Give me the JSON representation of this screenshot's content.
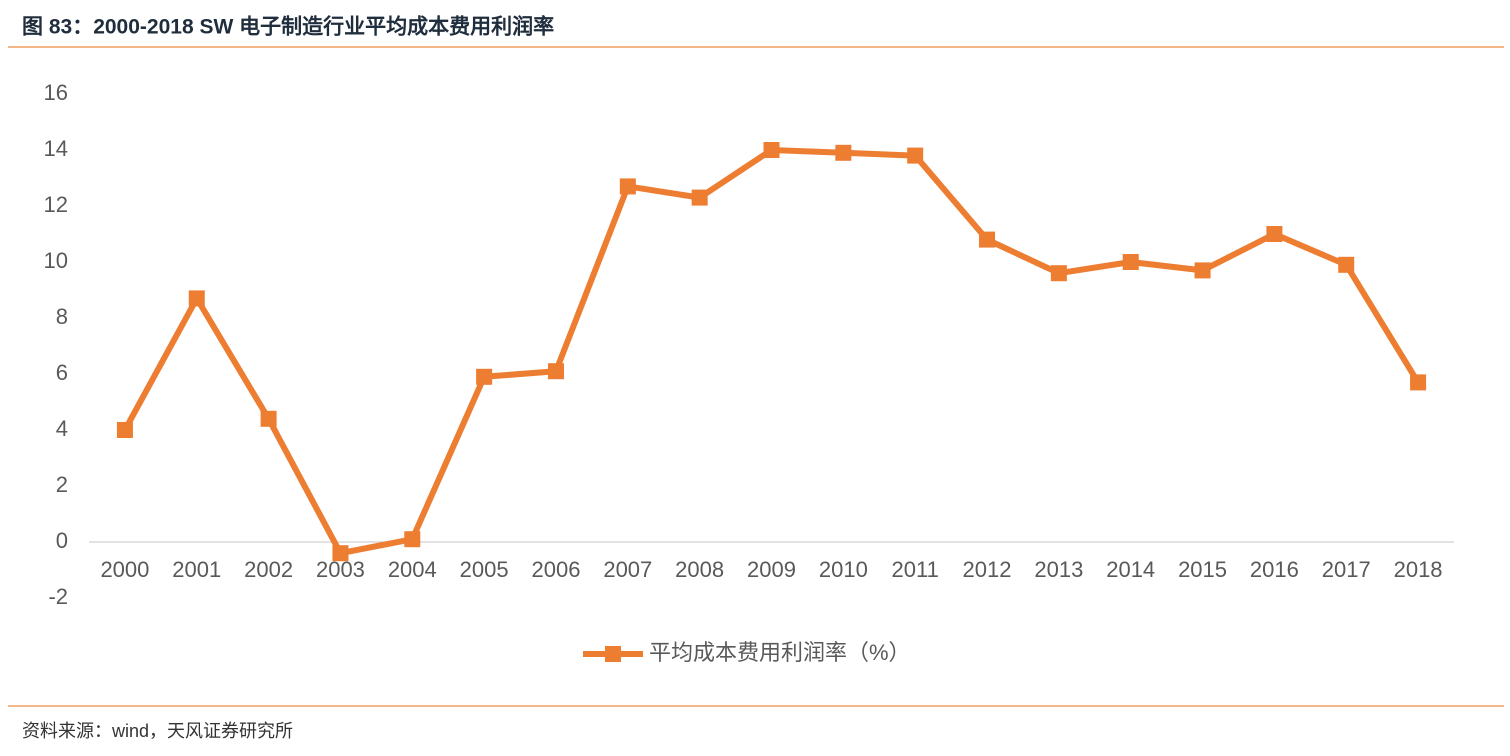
{
  "chart_data": {
    "type": "line",
    "title": "图 83：2000-2018 SW 电子制造行业平均成本费用利润率",
    "source": "资料来源：wind，天风证券研究所",
    "categories": [
      "2000",
      "2001",
      "2002",
      "2003",
      "2004",
      "2005",
      "2006",
      "2007",
      "2008",
      "2009",
      "2010",
      "2011",
      "2012",
      "2013",
      "2014",
      "2015",
      "2016",
      "2017",
      "2018"
    ],
    "series": [
      {
        "name": "平均成本费用利润率（%）",
        "color": "#ed7d31",
        "values": [
          4.0,
          8.7,
          4.4,
          -0.4,
          0.1,
          5.9,
          6.1,
          12.7,
          12.3,
          14.0,
          13.9,
          13.8,
          10.8,
          9.6,
          10.0,
          9.7,
          11.0,
          9.9,
          5.7
        ]
      }
    ],
    "ylim": [
      -2,
      16
    ],
    "yticks": [
      -2,
      0,
      2,
      4,
      6,
      8,
      10,
      12,
      14,
      16
    ],
    "grid": false,
    "legend": "bottom"
  }
}
